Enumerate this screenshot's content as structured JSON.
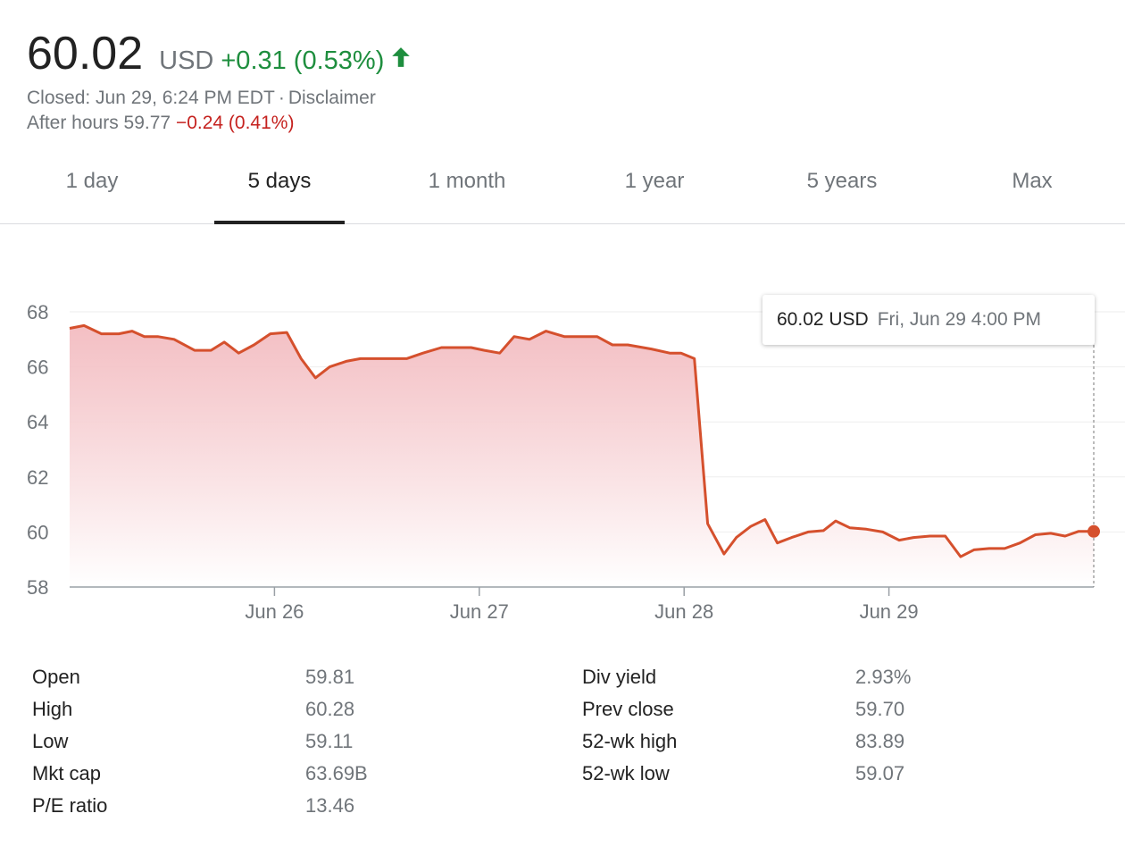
{
  "quote": {
    "price": "60.02",
    "currency": "USD",
    "change": "+0.31 (0.53%)",
    "change_color": "#1e8e3e",
    "closed_text": "Closed: Jun 29, 6:24 PM EDT",
    "separator": "·",
    "disclaimer": "Disclaimer",
    "after_hours_label": "After hours 59.77",
    "after_hours_change": "−0.24 (0.41%)",
    "after_hours_color": "#c5221f"
  },
  "tabs": [
    {
      "label": "1 day"
    },
    {
      "label": "5 days",
      "active": true
    },
    {
      "label": "1 month"
    },
    {
      "label": "1 year"
    },
    {
      "label": "5 years"
    },
    {
      "label": "Max"
    }
  ],
  "chart_data": {
    "type": "area",
    "line_color": "#d5502d",
    "ylim": [
      58,
      68.3
    ],
    "yticks": [
      58,
      60,
      62,
      64,
      66,
      68
    ],
    "xlim": [
      0,
      100
    ],
    "xticks": [
      {
        "label": "Jun 26",
        "x": 20
      },
      {
        "label": "Jun 27",
        "x": 40
      },
      {
        "label": "Jun 28",
        "x": 60
      },
      {
        "label": "Jun 29",
        "x": 80
      }
    ],
    "x": [
      0,
      1.4,
      3.1,
      4.8,
      6.1,
      7.3,
      8.6,
      10.2,
      12.2,
      13.8,
      15.1,
      16.5,
      18.0,
      19.6,
      21.2,
      22.6,
      24.0,
      25.4,
      27.0,
      28.4,
      30.2,
      31.6,
      32.9,
      34.5,
      36.3,
      37.9,
      39.2,
      40.5,
      42.0,
      43.4,
      44.9,
      46.5,
      48.3,
      49.7,
      51.5,
      53.0,
      54.5,
      56.8,
      58.6,
      59.7,
      61.0,
      62.3,
      63.9,
      65.1,
      66.5,
      67.9,
      69.1,
      70.5,
      72.1,
      73.6,
      74.8,
      76.2,
      77.8,
      79.4,
      81.0,
      82.4,
      84.0,
      85.5,
      87.0,
      88.3,
      89.8,
      91.3,
      92.8,
      94.3,
      95.8,
      97.2,
      98.5,
      100
    ],
    "y": [
      67.4,
      67.5,
      67.2,
      67.2,
      67.3,
      67.1,
      67.1,
      67.0,
      66.6,
      66.6,
      66.9,
      66.5,
      66.8,
      67.2,
      67.25,
      66.3,
      65.6,
      66.0,
      66.2,
      66.3,
      66.3,
      66.3,
      66.3,
      66.5,
      66.7,
      66.7,
      66.7,
      66.6,
      66.5,
      67.1,
      67.0,
      67.3,
      67.1,
      67.1,
      67.1,
      66.8,
      66.8,
      66.65,
      66.5,
      66.5,
      66.3,
      60.3,
      59.2,
      59.8,
      60.2,
      60.45,
      59.6,
      59.8,
      60.0,
      60.05,
      60.4,
      60.15,
      60.1,
      60.0,
      59.7,
      59.8,
      59.85,
      59.85,
      59.1,
      59.35,
      59.4,
      59.4,
      59.6,
      59.9,
      59.95,
      59.85,
      60.02,
      60.02
    ]
  },
  "tooltip": {
    "price": "60.02 USD",
    "date": "Fri, Jun 29 4:00 PM"
  },
  "stats": {
    "left": [
      {
        "label": "Open",
        "value": "59.81"
      },
      {
        "label": "High",
        "value": "60.28"
      },
      {
        "label": "Low",
        "value": "59.11"
      },
      {
        "label": "Mkt cap",
        "value": "63.69B"
      },
      {
        "label": "P/E ratio",
        "value": "13.46"
      }
    ],
    "right": [
      {
        "label": "Div yield",
        "value": "2.93%"
      },
      {
        "label": "Prev close",
        "value": "59.70"
      },
      {
        "label": "52-wk high",
        "value": "83.89"
      },
      {
        "label": "52-wk low",
        "value": "59.07"
      }
    ]
  }
}
